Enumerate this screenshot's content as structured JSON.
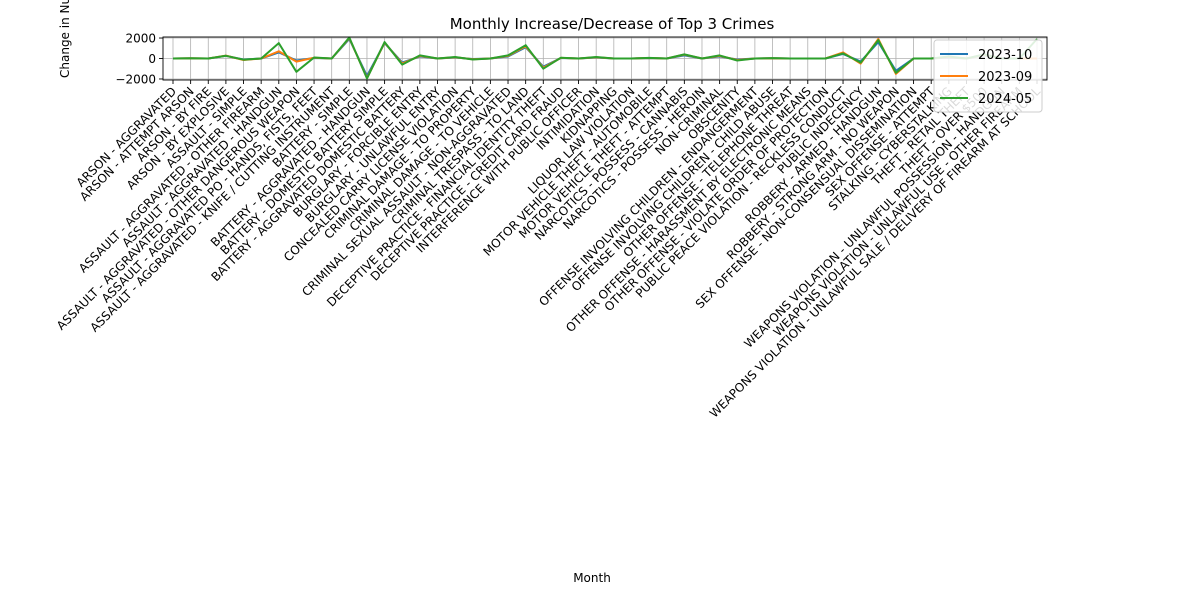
{
  "chart_data": {
    "type": "line",
    "title": "Monthly Increase/Decrease of Top 3 Crimes",
    "xlabel": "Month",
    "ylabel": "Change in Number of C",
    "ylim": [
      -2100,
      2100
    ],
    "yticks": [
      -2000,
      0,
      2000
    ],
    "grid": true,
    "legend_position": "top-right",
    "categories": [
      "ARSON - AGGRAVATED",
      "ARSON - ATTEMPT ARSON",
      "ARSON - BY FIRE",
      "ARSON - BY EXPLOSIVE",
      "ASSAULT - SIMPLE",
      "ASSAULT - AGGRAVATED - OTHER FIREARM",
      "ASSAULT - AGGRAVATED - HANDGUN",
      "ASSAULT - AGGRAVATED - OTHER DANGEROUS WEAPON",
      "ASSAULT - AGGRAVATED PO - HANDS, FISTS, FEET",
      "ASSAULT - AGGRAVATED - KNIFE / CUTTING INSTRUMENT",
      "BATTERY - SIMPLE",
      "BATTERY - AGGRAVATED - HANDGUN",
      "BATTERY - DOMESTIC BATTERY SIMPLE",
      "BATTERY - AGGRAVATED DOMESTIC BATTERY",
      "BURGLARY - FORCIBLE ENTRY",
      "BURGLARY - UNLAWFUL ENTRY",
      "CONCEALED CARRY LICENSE VIOLATION",
      "CRIMINAL DAMAGE - TO PROPERTY",
      "CRIMINAL DAMAGE - TO VEHICLE",
      "CRIMINAL SEXUAL ASSAULT - NON-AGGRAVATED",
      "CRIMINAL TRESPASS - TO LAND",
      "DECEPTIVE PRACTICE - FINANCIAL IDENTITY THEFT",
      "DECEPTIVE PRACTICE - CREDIT CARD FRAUD",
      "INTERFERENCE WITH PUBLIC OFFICER",
      "INTIMIDATION",
      "KIDNAPPING",
      "LIQUOR LAW VIOLATION",
      "MOTOR VEHICLE THEFT - AUTOMOBILE",
      "MOTOR VEHICLE THEFT - ATTEMPT",
      "NARCOTICS - POSSESS - CANNABIS",
      "NARCOTICS - POSSESS - HEROIN",
      "NON-CRIMINAL",
      "OBSCENITY",
      "OFFENSE INVOLVING CHILDREN - ENDANGERMENT",
      "OFFENSE INVOLVING CHILDREN - CHILD ABUSE",
      "OTHER OFFENSE - TELEPHONE THREAT",
      "OTHER OFFENSE - HARASSMENT BY ELECTRONIC MEANS",
      "OTHER OFFENSE - VIOLATE ORDER OF PROTECTION",
      "PUBLIC PEACE VIOLATION - RECKLESS CONDUCT",
      "PUBLIC INDECENCY",
      "ROBBERY - ARMED - HANDGUN",
      "ROBBERY - STRONG ARM - NO WEAPON",
      "SEX OFFENSE - NON-CONSENSUAL DISSEMINATION",
      "SEX OFFENSE - ATTEMPT",
      "STALKING - CYBERSTALKING",
      "THEFT - RETAIL THEFT",
      "THEFT - OVER $500",
      "WEAPONS VIOLATION - UNLAWFUL POSSESSION - HANDGUN",
      "WEAPONS VIOLATION - UNLAWFUL USE - OTHER FIREARM",
      "WEAPONS VIOLATION - UNLAWFUL SALE / DELIVERY OF FIREARM AT SCHOOL"
    ],
    "series": [
      {
        "name": "2023-10",
        "color": "#1f77b4",
        "values": [
          0,
          10,
          0,
          250,
          -100,
          0,
          600,
          -200,
          50,
          0,
          1900,
          -1700,
          1500,
          -400,
          200,
          0,
          100,
          -50,
          0,
          200,
          1100,
          -800,
          50,
          0,
          100,
          0,
          0,
          40,
          0,
          300,
          0,
          200,
          -100,
          0,
          20,
          0,
          0,
          0,
          450,
          -300,
          1600,
          -1200,
          0,
          0,
          100,
          0,
          300,
          0,
          0,
          0
        ]
      },
      {
        "name": "2023-09",
        "color": "#ff7f0e",
        "values": [
          0,
          20,
          0,
          280,
          -150,
          0,
          700,
          -300,
          80,
          0,
          2000,
          -1900,
          1550,
          -500,
          250,
          0,
          120,
          -80,
          0,
          250,
          1200,
          -900,
          60,
          0,
          120,
          0,
          0,
          50,
          0,
          380,
          0,
          250,
          -150,
          0,
          30,
          0,
          0,
          0,
          600,
          -500,
          1900,
          -1500,
          0,
          0,
          150,
          0,
          350,
          0,
          0,
          0
        ]
      },
      {
        "name": "2024-05",
        "color": "#2ca02c",
        "values": [
          0,
          15,
          0,
          260,
          -120,
          0,
          1500,
          -1300,
          100,
          0,
          2050,
          -1950,
          1600,
          -600,
          300,
          0,
          150,
          -100,
          0,
          300,
          1300,
          -1000,
          80,
          0,
          150,
          0,
          0,
          60,
          0,
          400,
          0,
          300,
          -200,
          0,
          40,
          0,
          0,
          0,
          500,
          -400,
          1800,
          -1400,
          0,
          0,
          200,
          0,
          400,
          0,
          0,
          1900
        ]
      }
    ]
  }
}
